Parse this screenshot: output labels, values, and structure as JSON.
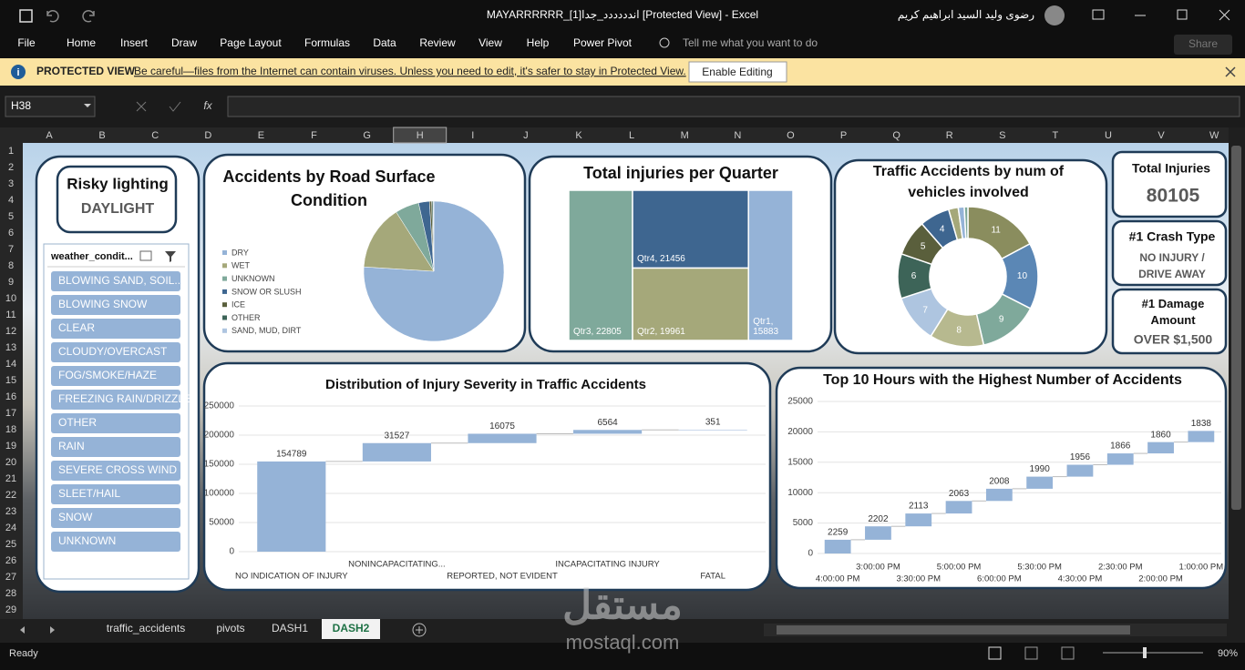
{
  "title_bar": {
    "title": "MAYARRRRRR_[1]اندددددد_جدا  [Protected View]  -  Excel",
    "user": "رضوى وليد السيد ابراهيم كريم"
  },
  "ribbon": {
    "tabs": [
      "File",
      "Home",
      "Insert",
      "Draw",
      "Page Layout",
      "Formulas",
      "Data",
      "Review",
      "View",
      "Help",
      "Power Pivot"
    ],
    "search": "Tell me what you want to do",
    "share": "Share"
  },
  "protected_view": {
    "label": "PROTECTED VIEW",
    "message": "Be careful—files from the Internet can contain viruses. Unless you need to edit, it's safer to stay in Protected View.",
    "button": "Enable Editing"
  },
  "formula_bar": {
    "name_box": "H38",
    "fx": "fx"
  },
  "columns": [
    "A",
    "B",
    "C",
    "D",
    "E",
    "F",
    "G",
    "H",
    "I",
    "J",
    "K",
    "L",
    "M",
    "N",
    "O",
    "P",
    "Q",
    "R",
    "S",
    "T",
    "U",
    "V",
    "W"
  ],
  "selected_column": 7,
  "rows": [
    1,
    2,
    3,
    4,
    5,
    6,
    7,
    8,
    9,
    10,
    11,
    12,
    13,
    14,
    15,
    16,
    17,
    18,
    19,
    20,
    21,
    22,
    23,
    24,
    25,
    26,
    27,
    28,
    29
  ],
  "dashboard": {
    "risky": {
      "title": "Risky lighting",
      "value": "DAYLIGHT"
    },
    "slicer": {
      "title": "weather_condit...",
      "items": [
        "BLOWING SAND, SOIL...",
        "BLOWING SNOW",
        "CLEAR",
        "CLOUDY/OVERCAST",
        "FOG/SMOKE/HAZE",
        "FREEZING RAIN/DRIZZLE",
        "OTHER",
        "RAIN",
        "SEVERE CROSS WIND ...",
        "SLEET/HAIL",
        "SNOW",
        "UNKNOWN"
      ]
    },
    "kpis": [
      {
        "title": "Total Injuries",
        "value": 80105
      },
      {
        "title": "#1 Crash Type",
        "value": "NO INJURY / DRIVE AWAY"
      },
      {
        "title": "#1 Damage Amount",
        "value": "OVER $1,500"
      }
    ]
  },
  "chart_data": [
    {
      "type": "pie",
      "title": "Accidents by Road Surface Condition",
      "categories": [
        "DRY",
        "WET",
        "UNKNOWN",
        "SNOW OR SLUSH",
        "ICE",
        "OTHER",
        "SAND, MUD, DIRT"
      ],
      "values": [
        76,
        15,
        5.5,
        2.5,
        0.5,
        0.3,
        0.2
      ],
      "colors": [
        "#95b3d7",
        "#a5a87a",
        "#7fa99b",
        "#3e6690",
        "#5a5f3c",
        "#3d6458",
        "#aec5e0"
      ]
    },
    {
      "type": "treemap",
      "title": "Total injuries per Quarter",
      "categories": [
        "Qtr3",
        "Qtr4",
        "Qtr2",
        "Qtr1"
      ],
      "values": [
        22805,
        21456,
        19961,
        15883
      ],
      "value_labels": [
        "Qtr3, 22805",
        "Qtr4, 21456",
        "Qtr2, 19961",
        "Qtr1, 15883"
      ],
      "colors": [
        "#7fa99b",
        "#3e6690",
        "#a5a87a",
        "#95b3d7"
      ]
    },
    {
      "type": "donut",
      "title": "Traffic Accidents by num of vehicles involved",
      "categories": [
        "11",
        "10",
        "9",
        "8",
        "7",
        "6",
        "5",
        "4",
        null,
        null,
        null
      ],
      "values": [
        62,
        55,
        50,
        45,
        40,
        37,
        30,
        25,
        8,
        5,
        3
      ],
      "colors": [
        "#8a8d5e",
        "#5b87b5",
        "#7fa99b",
        "#b7b98f",
        "#aec5e0",
        "#3d6458",
        "#5a5f3c",
        "#3e6690",
        "#a5a87a",
        "#95b3d7",
        "#7fa99b"
      ]
    },
    {
      "type": "waterfall",
      "title": "Distribution of Injury Severity in Traffic Accidents",
      "categories": [
        "NO INDICATION OF INJURY",
        "NONINCAPACITATING...",
        "REPORTED, NOT EVIDENT",
        "INCAPACITATING INJURY",
        "FATAL"
      ],
      "values": [
        154789,
        31527,
        16075,
        6564,
        351
      ],
      "color": "#95b3d7",
      "ylim": [
        0,
        250000
      ],
      "yticks": [
        0,
        50000,
        100000,
        150000,
        200000,
        250000
      ],
      "grid": true
    },
    {
      "type": "waterfall",
      "title": "Top 10 Hours with the Highest Number of Accidents",
      "categories": [
        "4:00:00 PM",
        "3:00:00 PM",
        "3:30:00 PM",
        "5:00:00 PM",
        "6:00:00 PM",
        "5:30:00 PM",
        "4:30:00 PM",
        "2:30:00 PM",
        "2:00:00 PM",
        "1:00:00 PM"
      ],
      "values": [
        2259,
        2202,
        2113,
        2063,
        2008,
        1990,
        1956,
        1866,
        1860,
        1838
      ],
      "color": "#95b3d7",
      "ylim": [
        0,
        25000
      ],
      "yticks": [
        0,
        5000,
        10000,
        15000,
        20000,
        25000
      ],
      "grid": true
    }
  ],
  "sheet_tabs": {
    "tabs": [
      "traffic_accidents",
      "pivots",
      "DASH1",
      "DASH2"
    ],
    "active": 3
  },
  "status_bar": {
    "status": "Ready",
    "zoom": "90%"
  },
  "watermark": {
    "arabic": "مستقل",
    "latin": "mostaql.com"
  }
}
